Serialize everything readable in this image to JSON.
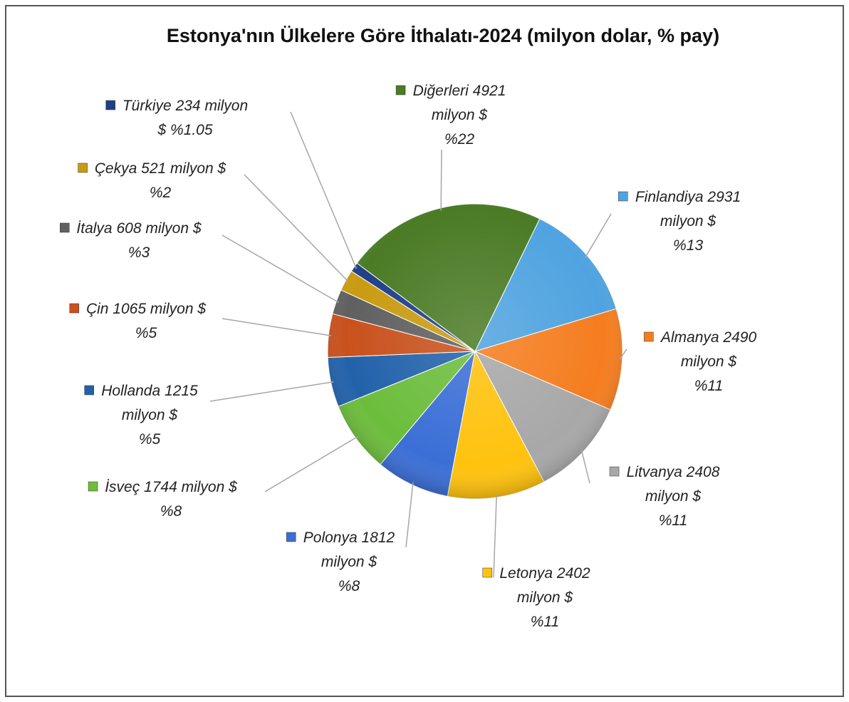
{
  "chart_data": {
    "type": "pie",
    "title": "Estonya'nın Ülkelere Göre İthalatı-2024 (milyon dolar, % pay)",
    "unit": "milyon $",
    "categories": [
      "Finlandiya",
      "Almanya",
      "Litvanya",
      "Letonya",
      "Polonya",
      "İsveç",
      "Hollanda",
      "Çin",
      "İtalya",
      "Çekya",
      "Türkiye",
      "Diğerleri"
    ],
    "values": [
      2931,
      2490,
      2408,
      2402,
      1812,
      1744,
      1215,
      1065,
      608,
      521,
      234,
      4921
    ],
    "percents": [
      13,
      11,
      11,
      11,
      8,
      8,
      5,
      5,
      3,
      2,
      1.05,
      22
    ],
    "percent_labels": [
      "%13",
      "%11",
      "%11",
      "%11",
      "%8",
      "%8",
      "%5",
      "%5",
      "%3",
      "%2",
      "%1.05",
      "%22"
    ],
    "colors": [
      "#4fa3e0",
      "#f57d1f",
      "#a8a8a8",
      "#ffc20e",
      "#3b6fd6",
      "#6cbd3c",
      "#2262aa",
      "#c9511d",
      "#606060",
      "#c99b12",
      "#1f3f88",
      "#4b7b25"
    ]
  }
}
